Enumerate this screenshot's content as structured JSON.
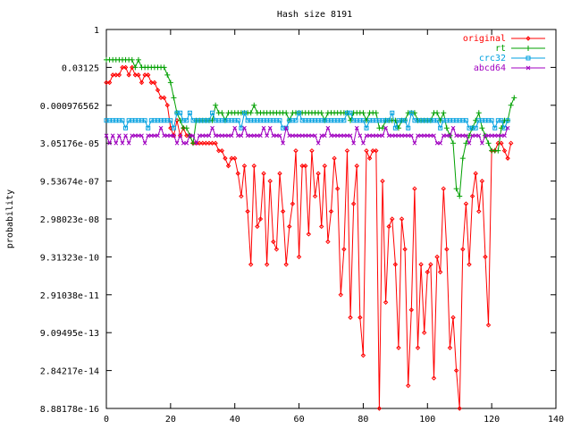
{
  "chart_data": {
    "type": "line",
    "title": "Hash size 8191",
    "xlabel": "",
    "ylabel": "probability",
    "xlim": [
      0,
      140
    ],
    "ylim": [
      8.88178e-16,
      1
    ],
    "yscale": "log2",
    "xticks": [
      "0",
      "20",
      "40",
      "60",
      "80",
      "100",
      "120",
      "140"
    ],
    "yticks": [
      "1",
      "0.03125",
      "0.000976562",
      "3.05176e-05",
      "9.53674e-07",
      "2.98023e-08",
      "9.31323e-10",
      "2.91038e-11",
      "9.09495e-13",
      "2.84217e-14",
      "8.88178e-16"
    ],
    "legend_position": "top-right",
    "grid": false,
    "series": [
      {
        "name": "original",
        "color": "#ff0000",
        "marker": "diamond",
        "values": [
          -7,
          -7,
          -6,
          -6,
          -6,
          -5,
          -5,
          -6,
          -5,
          -6,
          -6,
          -7,
          -6,
          -6,
          -7,
          -7,
          -8,
          -9,
          -9,
          -10,
          -13,
          -14,
          -12,
          -14,
          -13,
          -14,
          -14,
          -15,
          -15,
          -15,
          -15,
          -15,
          -15,
          -15,
          -15,
          -16,
          -16,
          -17,
          -18,
          -17,
          -17,
          -19,
          -22,
          -18,
          -24,
          -31,
          -18,
          -26,
          -25,
          -19,
          -31,
          -20,
          -28,
          -29,
          -19,
          -24,
          -31,
          -26,
          -23,
          -16,
          -30,
          -18,
          -18,
          -27,
          -16,
          -22,
          -19,
          -26,
          -18,
          -28,
          -24,
          -17,
          -21,
          -35,
          -29,
          -16,
          -38,
          -23,
          -18,
          -38,
          -43,
          -16,
          -17,
          -16,
          -16,
          -50,
          -20,
          -36,
          -26,
          -25,
          -31,
          -42,
          -25,
          -29,
          -47,
          -37,
          -21,
          -42,
          -31,
          -40,
          -32,
          -31,
          -46,
          -30,
          -32,
          -21,
          -29,
          -42,
          -38,
          -45,
          -50,
          -29,
          -23,
          -31,
          -22,
          -19,
          -24,
          -20,
          -30,
          -39,
          -16,
          -16,
          -15,
          -15,
          -16,
          -17,
          -15
        ]
      },
      {
        "name": "rt",
        "color": "#00a000",
        "marker": "plus",
        "values": [
          -4,
          -4,
          -4,
          -4,
          -4,
          -4,
          -4,
          -4,
          -4,
          -5,
          -4,
          -5,
          -5,
          -5,
          -5,
          -5,
          -5,
          -5,
          -5,
          -6,
          -7,
          -9,
          -11,
          -12,
          -13,
          -13,
          -14,
          -15,
          -12,
          -12,
          -12,
          -12,
          -12,
          -12,
          -10,
          -11,
          -11,
          -12,
          -11,
          -11,
          -11,
          -11,
          -11,
          -11,
          -11,
          -11,
          -10,
          -11,
          -11,
          -11,
          -11,
          -11,
          -11,
          -11,
          -11,
          -11,
          -11,
          -12,
          -11,
          -11,
          -11,
          -11,
          -11,
          -11,
          -11,
          -11,
          -11,
          -11,
          -12,
          -11,
          -11,
          -11,
          -11,
          -11,
          -11,
          -11,
          -12,
          -11,
          -11,
          -11,
          -11,
          -12,
          -11,
          -11,
          -11,
          -13,
          -13,
          -12,
          -12,
          -12,
          -12,
          -13,
          -12,
          -12,
          -11,
          -11,
          -11,
          -12,
          -12,
          -12,
          -12,
          -12,
          -11,
          -11,
          -12,
          -11,
          -13,
          -14,
          -15,
          -21,
          -22,
          -17,
          -15,
          -14,
          -13,
          -12,
          -11,
          -13,
          -14,
          -15,
          -16,
          -16,
          -16,
          -13,
          -12,
          -12,
          -10,
          -9
        ]
      },
      {
        "name": "crc32",
        "color": "#00a0e0",
        "marker": "square",
        "values": [
          -12,
          -12,
          -12,
          -12,
          -12,
          -12,
          -12,
          -12,
          -12,
          -12,
          -12,
          -12,
          -12,
          -12,
          -12,
          -12,
          -12,
          -12,
          -12,
          -12,
          -12,
          -12,
          -12,
          -12,
          -12,
          -12,
          -12,
          -12,
          -12,
          -12,
          -12,
          -12,
          -12,
          -12,
          -12,
          -12,
          -12,
          -12,
          -12,
          -12,
          -12,
          -12,
          -12,
          -12,
          -12,
          -12,
          -12,
          -12,
          -12,
          -12,
          -12,
          -12,
          -12,
          -12,
          -12,
          -12,
          -12,
          -12,
          -12,
          -12,
          -12,
          -12,
          -12,
          -12,
          -12,
          -12,
          -12,
          -12,
          -12,
          -12,
          -12,
          -12,
          -12,
          -12,
          -12,
          -12,
          -12,
          -12,
          -12,
          -12,
          -12,
          -12,
          -12,
          -12,
          -12,
          -12,
          -12,
          -12,
          -12,
          -12,
          -12,
          -12,
          -12,
          -12,
          -12,
          -12,
          -12,
          -12,
          -12,
          -12,
          -12,
          -12,
          -12,
          -12,
          -12,
          -12,
          -12,
          -12,
          -12,
          -12,
          -12,
          -12,
          -12,
          -12,
          -12,
          -12,
          -12,
          -12,
          -12,
          -12,
          -12,
          -12,
          -12,
          -12,
          -12,
          -12
        ],
        "noise": true
      },
      {
        "name": "abcd64",
        "color": "#a000c0",
        "marker": "cross",
        "values": [
          -14,
          -15,
          -14,
          -15,
          -14,
          -14,
          -14,
          -14,
          -14,
          -14,
          -14,
          -14,
          -14,
          -14,
          -14,
          -14,
          -14,
          -14,
          -14,
          -14,
          -14,
          -14,
          -14,
          -14,
          -14,
          -14,
          -14,
          -14,
          -14,
          -14,
          -14,
          -14,
          -14,
          -14,
          -14,
          -14,
          -14,
          -14,
          -14,
          -14,
          -14,
          -14,
          -14,
          -14,
          -14,
          -14,
          -14,
          -14,
          -14,
          -14,
          -14,
          -14,
          -14,
          -14,
          -14,
          -14,
          -14,
          -14,
          -14,
          -14,
          -14,
          -14,
          -14,
          -14,
          -14,
          -14,
          -14,
          -14,
          -14,
          -14,
          -14,
          -14,
          -14,
          -14,
          -14,
          -14,
          -14,
          -14,
          -14,
          -14,
          -14,
          -14,
          -14,
          -14,
          -14,
          -14,
          -14,
          -14,
          -14,
          -14,
          -14,
          -14,
          -14,
          -14,
          -14,
          -14,
          -14,
          -14,
          -14,
          -14,
          -14,
          -14,
          -14,
          -14,
          -14,
          -14,
          -14,
          -14,
          -14,
          -14,
          -14,
          -14,
          -14,
          -14,
          -14,
          -14,
          -14,
          -14,
          -14,
          -14,
          -14,
          -14,
          -14,
          -14,
          -14,
          -13
        ],
        "noise": true
      }
    ]
  }
}
